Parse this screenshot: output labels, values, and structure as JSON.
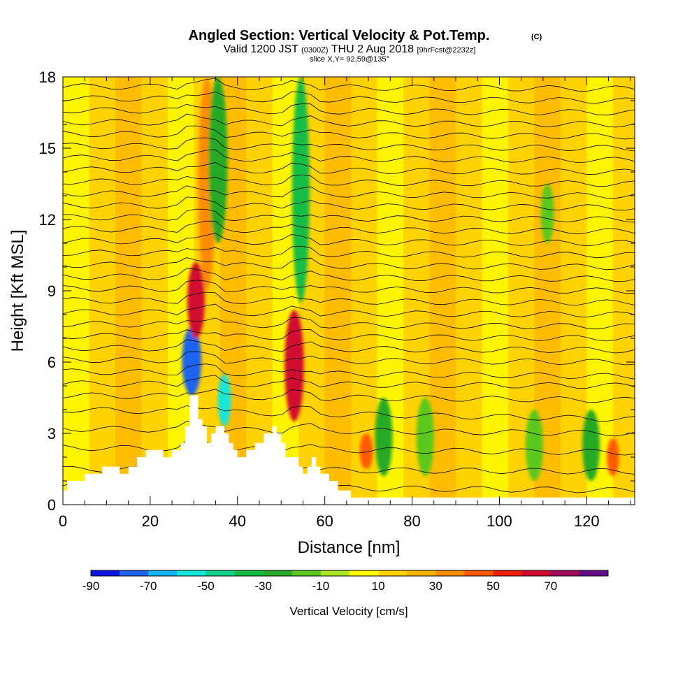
{
  "chart_data": {
    "type": "heatmap",
    "title": "Angled Section: Vertical Velocity & Pot.Temp.",
    "title_mark": "(C)",
    "subtitle": {
      "valid_prefix": "Valid 1200 JST",
      "zulu": "(0300Z)",
      "date": "THU 2 Aug 2018",
      "forecast": "[9hrFcst@2232z]"
    },
    "slice_label": "slice X,Y= 92,59@135°",
    "xlabel": "Distance [nm]",
    "ylabel": "Height [Kft MSL]",
    "xlim": [
      0,
      131
    ],
    "ylim": [
      0,
      18
    ],
    "x_ticks": [
      0,
      20,
      40,
      60,
      80,
      100,
      120
    ],
    "y_ticks": [
      0,
      3,
      6,
      9,
      12,
      15,
      18
    ],
    "colorbar": {
      "label": "Vertical Velocity [cm/s]",
      "tick_labels": [
        "-90",
        "-70",
        "-50",
        "-30",
        "-10",
        "10",
        "30",
        "50",
        "70"
      ],
      "bins": [
        -90,
        -80,
        -70,
        -60,
        -50,
        -40,
        -30,
        -20,
        -10,
        0,
        10,
        20,
        30,
        40,
        50,
        60,
        70,
        80
      ],
      "colors": [
        "#0a14e6",
        "#1e64f0",
        "#14b4f0",
        "#14e6dc",
        "#14d28c",
        "#14be46",
        "#28aa28",
        "#5ac81e",
        "#aae628",
        "#ffff00",
        "#ffd200",
        "#ffb400",
        "#ff8c00",
        "#ff5a00",
        "#f01e00",
        "#d20a32",
        "#a00a5a",
        "#640a8c"
      ]
    },
    "terrain_profile": {
      "x": [
        0,
        1,
        1,
        5,
        5,
        9,
        9,
        13,
        13,
        15,
        15,
        17,
        17,
        19,
        19,
        23,
        23,
        25,
        25,
        27,
        27,
        28,
        28,
        29,
        29,
        31,
        31,
        32,
        32,
        33,
        33,
        34,
        34,
        35,
        35,
        37,
        37,
        38,
        38,
        39,
        39,
        40,
        40,
        42,
        42,
        44,
        44,
        46,
        46,
        48,
        48,
        49,
        49,
        50,
        50,
        51,
        51,
        54,
        54,
        55,
        55,
        56,
        56,
        57,
        57,
        58,
        58,
        59,
        59,
        61,
        61,
        63,
        63,
        66,
        66,
        71,
        71,
        131
      ],
      "y": [
        0.6,
        0.6,
        1.0,
        1.0,
        1.3,
        1.3,
        1.6,
        1.6,
        1.3,
        1.3,
        1.6,
        1.6,
        2.0,
        2.0,
        2.3,
        2.3,
        2.0,
        2.0,
        2.3,
        2.3,
        2.6,
        2.6,
        3.3,
        3.3,
        4.6,
        4.6,
        3.6,
        3.6,
        3.3,
        3.3,
        2.6,
        2.6,
        3.0,
        3.0,
        3.3,
        3.3,
        3.0,
        3.0,
        2.6,
        2.6,
        2.3,
        2.3,
        2.0,
        2.0,
        2.3,
        2.3,
        2.6,
        2.6,
        3.0,
        3.0,
        3.3,
        3.3,
        3.0,
        3.0,
        2.6,
        2.6,
        2.0,
        2.0,
        1.6,
        1.6,
        1.3,
        1.3,
        1.6,
        1.6,
        2.0,
        2.0,
        1.6,
        1.6,
        1.3,
        1.3,
        1.0,
        1.0,
        0.6,
        0.6,
        0.3,
        0.3,
        0.3,
        0.3
      ]
    },
    "vertical_velocity_cells": [
      {
        "x": 29.5,
        "y_bottom": 4.6,
        "y_top": 7.5,
        "width": 2.2,
        "value": -75
      },
      {
        "x": 30.5,
        "y_bottom": 7.0,
        "y_top": 10.2,
        "width": 2.0,
        "value": 60
      },
      {
        "x": 33.0,
        "y_bottom": 9.0,
        "y_top": 18.0,
        "width": 2.0,
        "value": 35
      },
      {
        "x": 35.5,
        "y_bottom": 11.0,
        "y_top": 18.0,
        "width": 2.2,
        "value": -25
      },
      {
        "x": 37.0,
        "y_bottom": 3.3,
        "y_top": 5.5,
        "width": 1.5,
        "value": -55
      },
      {
        "x": 53.0,
        "y_bottom": 3.5,
        "y_top": 8.2,
        "width": 2.2,
        "value": 65
      },
      {
        "x": 54.5,
        "y_bottom": 8.5,
        "y_top": 18.0,
        "width": 2.0,
        "value": -35
      },
      {
        "x": 69.5,
        "y_bottom": 1.5,
        "y_top": 3.0,
        "width": 1.5,
        "value": 45
      },
      {
        "x": 126.0,
        "y_bottom": 1.2,
        "y_top": 2.8,
        "width": 1.4,
        "value": 45
      },
      {
        "x": 73.5,
        "y_bottom": 1.2,
        "y_top": 4.5,
        "width": 2.0,
        "value": -25
      },
      {
        "x": 83.0,
        "y_bottom": 1.2,
        "y_top": 4.5,
        "width": 2.0,
        "value": -15
      },
      {
        "x": 108.0,
        "y_bottom": 1.0,
        "y_top": 4.0,
        "width": 2.0,
        "value": -15
      },
      {
        "x": 121.0,
        "y_bottom": 1.0,
        "y_top": 4.0,
        "width": 2.0,
        "value": -25
      },
      {
        "x": 111.0,
        "y_bottom": 11.0,
        "y_top": 13.5,
        "width": 1.5,
        "value": -15
      }
    ],
    "theta_contours": {
      "y_start": [
        0.8,
        1.5,
        2.4,
        3.2,
        4.0,
        4.6,
        5.1,
        5.6,
        6.1,
        6.6,
        7.1,
        7.6,
        8.1,
        8.6,
        9.1,
        9.6,
        10.1,
        10.6,
        11.1,
        11.6,
        12.1,
        12.6,
        13.1,
        13.6,
        14.1,
        14.6,
        15.1,
        15.6,
        16.1,
        16.6,
        17.1,
        17.6
      ],
      "y_end": [
        0.6,
        1.4,
        2.2,
        3.0,
        3.6,
        4.4,
        5.0,
        5.4,
        6.0,
        6.5,
        7.0,
        7.5,
        8.0,
        8.5,
        9.0,
        9.5,
        10.0,
        10.5,
        11.0,
        11.5,
        12.0,
        12.5,
        13.0,
        13.5,
        14.0,
        14.5,
        15.0,
        15.5,
        16.0,
        16.5,
        17.0,
        17.5
      ]
    }
  }
}
